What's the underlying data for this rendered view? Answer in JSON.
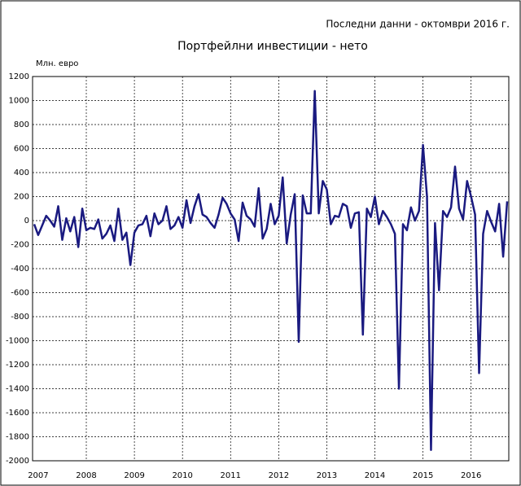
{
  "chart_data": {
    "type": "line",
    "title": "Портфейлни инвестиции - нето",
    "subtitle": "Последни данни - октомври 2016 г.",
    "y_label": "Млн. евро",
    "categories": [
      null,
      "2007",
      null,
      null,
      null,
      null,
      null,
      null,
      null,
      null,
      null,
      null,
      null,
      "2008",
      null,
      null,
      null,
      null,
      null,
      null,
      null,
      null,
      null,
      null,
      null,
      "2009",
      null,
      null,
      null,
      null,
      null,
      null,
      null,
      null,
      null,
      null,
      null,
      "2010",
      null,
      null,
      null,
      null,
      null,
      null,
      null,
      null,
      null,
      null,
      null,
      "2011",
      null,
      null,
      null,
      null,
      null,
      null,
      null,
      null,
      null,
      null,
      null,
      "2012",
      null,
      null,
      null,
      null,
      null,
      null,
      null,
      null,
      null,
      null,
      null,
      "2013",
      null,
      null,
      null,
      null,
      null,
      null,
      null,
      null,
      null,
      null,
      null,
      "2014",
      null,
      null,
      null,
      null,
      null,
      null,
      null,
      null,
      null,
      null,
      null,
      "2015",
      null,
      null,
      null,
      null,
      null,
      null,
      null,
      null,
      null,
      null,
      null,
      "2016",
      null,
      null,
      null,
      null,
      null,
      null,
      null,
      null,
      null
    ],
    "series": [
      {
        "name": "Портфейлни инвестиции - нето",
        "color": "#1a1a80",
        "values": [
          -30,
          -120,
          -40,
          40,
          0,
          -50,
          120,
          -160,
          20,
          -90,
          30,
          -220,
          100,
          -80,
          -60,
          -70,
          10,
          -150,
          -110,
          -40,
          -170,
          100,
          -160,
          -100,
          -370,
          -100,
          -40,
          -30,
          40,
          -130,
          60,
          -30,
          0,
          120,
          -70,
          -40,
          30,
          -60,
          170,
          -20,
          120,
          220,
          50,
          30,
          -20,
          -60,
          50,
          190,
          140,
          60,
          10,
          -170,
          150,
          40,
          10,
          -50,
          270,
          -150,
          -70,
          140,
          -30,
          40,
          360,
          -190,
          50,
          220,
          -1010,
          210,
          60,
          60,
          1080,
          60,
          330,
          260,
          -30,
          40,
          30,
          140,
          120,
          -60,
          60,
          70,
          -950,
          100,
          30,
          200,
          -30,
          80,
          30,
          -30,
          -110,
          -1400,
          -30,
          -80,
          110,
          0,
          80,
          630,
          200,
          -1910,
          -20,
          -580,
          80,
          30,
          110,
          450,
          100,
          10,
          330,
          200,
          50,
          -1270,
          -110,
          80,
          -10,
          -90,
          140,
          -300,
          160
        ]
      }
    ],
    "ylim": [
      -2000,
      1200
    ],
    "yticks": [
      -2000,
      -1800,
      -1600,
      -1400,
      -1200,
      -1000,
      -800,
      -600,
      -400,
      -200,
      0,
      200,
      400,
      600,
      800,
      1000,
      1200
    ],
    "grid": true
  }
}
